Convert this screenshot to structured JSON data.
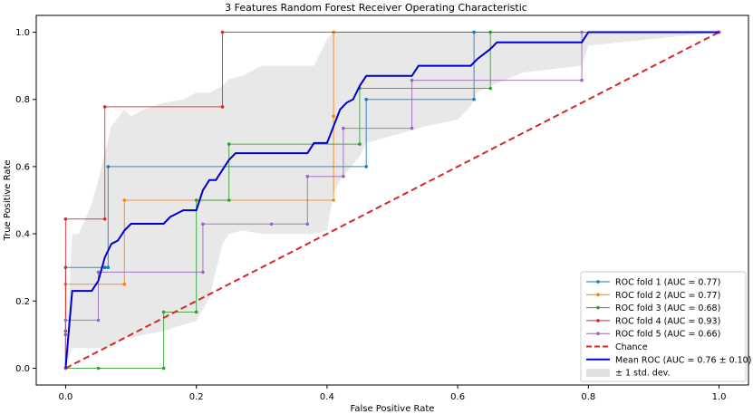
{
  "chart_data": {
    "type": "line",
    "title": "3 Features Random Forest Receiver Operating Characteristic",
    "xlabel": "False Positive Rate",
    "ylabel": "True Positive Rate",
    "xlim": [
      -0.045,
      1.045
    ],
    "ylim": [
      -0.05,
      1.05
    ],
    "xticks": [
      "0.0",
      "0.2",
      "0.4",
      "0.6",
      "0.8",
      "1.0"
    ],
    "yticks": [
      "0.0",
      "0.2",
      "0.4",
      "0.6",
      "0.8",
      "1.0"
    ],
    "grid": false,
    "legend_position": "lower right",
    "series": [
      {
        "name": "ROC fold 1 (AUC = 0.77)",
        "color": "#1f77b4",
        "x": [
          0,
          0,
          0,
          0.06,
          0.06,
          0.065,
          0.065,
          0.46,
          0.46,
          0.625,
          0.625,
          1.0
        ],
        "y": [
          0,
          0.1,
          0.3,
          0.3,
          0.3,
          0.3,
          0.6,
          0.6,
          0.8,
          0.8,
          1.0,
          1.0
        ]
      },
      {
        "name": "ROC fold 2 (AUC = 0.77)",
        "color": "#ff7f0e",
        "x": [
          0,
          0,
          0.09,
          0.09,
          0.41,
          0.41,
          0.41,
          1.0
        ],
        "y": [
          0,
          0.25,
          0.25,
          0.5,
          0.5,
          0.75,
          1.0,
          1.0
        ]
      },
      {
        "name": "ROC fold 3 (AUC = 0.68)",
        "color": "#2ca02c",
        "x": [
          0,
          0.05,
          0.15,
          0.15,
          0.2,
          0.2,
          0.25,
          0.25,
          0.45,
          0.45,
          0.65,
          0.65,
          1.0
        ],
        "y": [
          0,
          0,
          0,
          0.167,
          0.167,
          0.5,
          0.5,
          0.667,
          0.667,
          0.833,
          0.833,
          1.0,
          1.0
        ]
      },
      {
        "name": "ROC fold 4 (AUC = 0.93)",
        "color": "#d62728",
        "x": [
          0,
          0,
          0,
          0.06,
          0.06,
          0.24,
          0.24,
          1.0
        ],
        "y": [
          0,
          0.111,
          0.444,
          0.444,
          0.778,
          0.778,
          1.0,
          1.0
        ]
      },
      {
        "name": "ROC fold 5 (AUC = 0.66)",
        "color": "#9467bd",
        "x": [
          0,
          0,
          0.05,
          0.05,
          0.21,
          0.21,
          0.315,
          0.37,
          0.37,
          0.425,
          0.425,
          0.53,
          0.53,
          0.79,
          0.79,
          1.0
        ],
        "y": [
          0,
          0.143,
          0.143,
          0.286,
          0.286,
          0.429,
          0.429,
          0.429,
          0.571,
          0.571,
          0.714,
          0.714,
          0.857,
          0.857,
          1.0,
          1.0
        ]
      }
    ],
    "chance": {
      "name": "Chance",
      "color": "#d62728",
      "x": [
        0,
        1
      ],
      "y": [
        0,
        1
      ]
    },
    "mean": {
      "name": "Mean ROC (AUC = 0.76 ± 0.10)",
      "color": "#0000cc",
      "x": [
        0,
        0.01,
        0.04,
        0.05,
        0.06,
        0.07,
        0.08,
        0.09,
        0.1,
        0.15,
        0.16,
        0.18,
        0.19,
        0.2,
        0.21,
        0.22,
        0.23,
        0.24,
        0.25,
        0.26,
        0.37,
        0.38,
        0.4,
        0.42,
        0.43,
        0.44,
        0.45,
        0.46,
        0.53,
        0.54,
        0.62,
        0.63,
        0.65,
        0.66,
        0.79,
        0.8,
        1.0
      ],
      "y": [
        0,
        0.23,
        0.23,
        0.26,
        0.33,
        0.37,
        0.38,
        0.41,
        0.43,
        0.43,
        0.45,
        0.47,
        0.47,
        0.47,
        0.53,
        0.56,
        0.56,
        0.59,
        0.62,
        0.64,
        0.64,
        0.67,
        0.67,
        0.77,
        0.79,
        0.8,
        0.84,
        0.87,
        0.87,
        0.9,
        0.9,
        0.92,
        0.95,
        0.97,
        0.97,
        1.0,
        1.0
      ]
    },
    "std_band": {
      "name": "± 1 std. dev.",
      "color": "#cccccc",
      "x": [
        0,
        0.01,
        0.02,
        0.04,
        0.05,
        0.07,
        0.09,
        0.1,
        0.12,
        0.15,
        0.18,
        0.2,
        0.22,
        0.24,
        0.25,
        0.27,
        0.3,
        0.38,
        0.4,
        0.41,
        0.42,
        0.45,
        0.46,
        0.55,
        0.6,
        0.62,
        0.63,
        0.65,
        0.7,
        0.79,
        0.8,
        1.0
      ],
      "upper": [
        0,
        0.4,
        0.4,
        0.49,
        0.56,
        0.72,
        0.77,
        0.75,
        0.77,
        0.79,
        0.8,
        0.82,
        0.82,
        0.84,
        0.86,
        0.87,
        0.9,
        0.9,
        0.98,
        1.0,
        1.0,
        1.0,
        1.0,
        1.0,
        1.0,
        1.0,
        1.0,
        1.0,
        1.0,
        1.0,
        1.0,
        1.0
      ],
      "lower": [
        0,
        0.06,
        0.06,
        0.06,
        0.06,
        0.06,
        0.09,
        0.09,
        0.1,
        0.11,
        0.13,
        0.14,
        0.21,
        0.37,
        0.4,
        0.41,
        0.4,
        0.4,
        0.41,
        0.52,
        0.56,
        0.63,
        0.67,
        0.72,
        0.74,
        0.78,
        0.82,
        0.84,
        0.88,
        0.9,
        0.96,
        1.0
      ]
    }
  }
}
